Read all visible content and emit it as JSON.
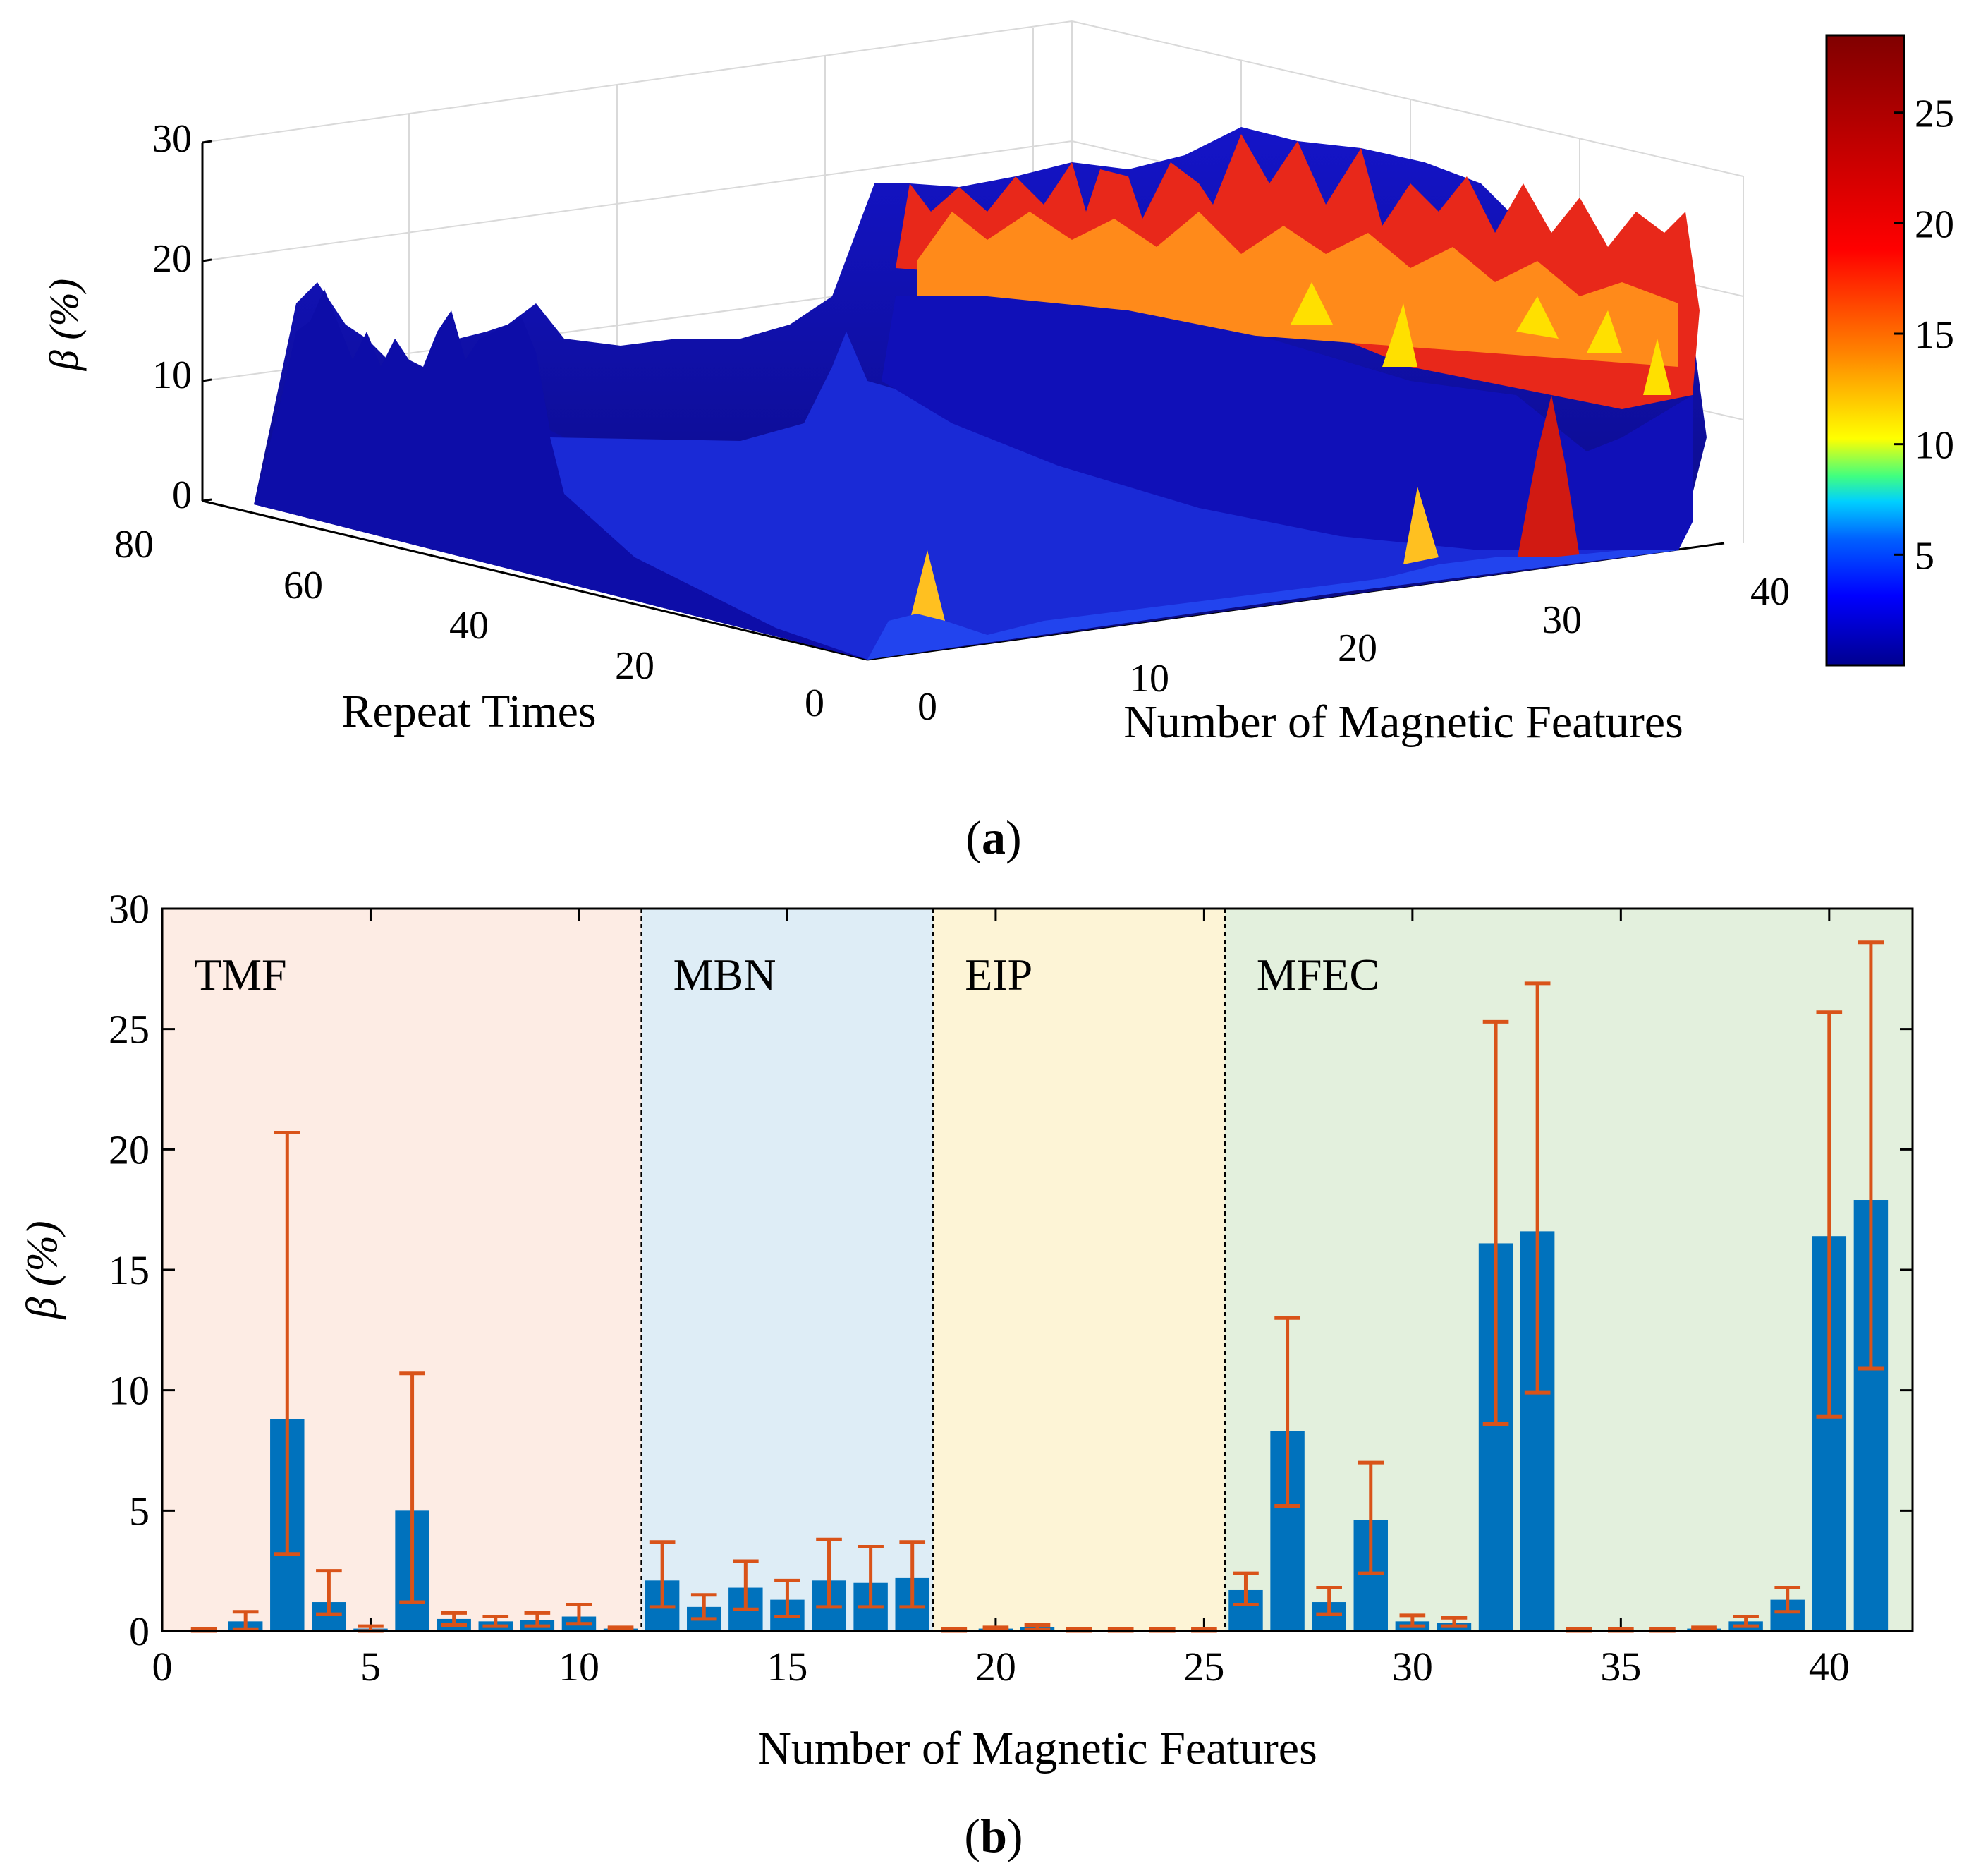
{
  "panel_a": {
    "caption_letter": "a",
    "z_label": "β (%)",
    "x_label": "Repeat Times",
    "y_label": "Number of Magnetic Features",
    "z_ticks": [
      "0",
      "10",
      "20",
      "30"
    ],
    "repeat_ticks": [
      "0",
      "20",
      "40",
      "60",
      "80"
    ],
    "feature_ticks": [
      "0",
      "10",
      "20",
      "30",
      "40"
    ],
    "colorbar_ticks": [
      "5",
      "10",
      "15",
      "20",
      "25"
    ],
    "colorbar_range": [
      0,
      28.5
    ],
    "colormap": "jet"
  },
  "panel_b": {
    "caption_letter": "b",
    "regions": [
      {
        "label": "TMF",
        "from": 0,
        "to": 11.5,
        "color": "#fdece4"
      },
      {
        "label": "MBN",
        "from": 11.5,
        "to": 18.5,
        "color": "#deedf6"
      },
      {
        "label": "EIP",
        "from": 18.5,
        "to": 25.5,
        "color": "#fdf4d6"
      },
      {
        "label": "MFEC",
        "from": 25.5,
        "to": 42,
        "color": "#e3f0dd"
      }
    ]
  },
  "chart_data": {
    "type": "bar",
    "xlabel": "Number of Magnetic Features",
    "ylabel": "β (%)",
    "xlim": [
      0,
      42
    ],
    "ylim": [
      0,
      30
    ],
    "x_ticks": [
      0,
      5,
      10,
      15,
      20,
      25,
      30,
      35,
      40
    ],
    "y_ticks": [
      0,
      5,
      10,
      15,
      20,
      25,
      30
    ],
    "bar_color": "#0072bd",
    "error_color": "#d95319",
    "x": [
      1,
      2,
      3,
      4,
      5,
      6,
      7,
      8,
      9,
      10,
      11,
      12,
      13,
      14,
      15,
      16,
      17,
      18,
      19,
      20,
      21,
      22,
      23,
      24,
      25,
      26,
      27,
      28,
      29,
      30,
      31,
      32,
      33,
      34,
      35,
      36,
      37,
      38,
      39,
      40,
      41
    ],
    "values": [
      0.05,
      0.4,
      8.8,
      1.2,
      0.1,
      5.0,
      0.5,
      0.4,
      0.45,
      0.6,
      0.1,
      2.1,
      1.0,
      1.8,
      1.3,
      2.1,
      2.0,
      2.2,
      0.05,
      0.1,
      0.15,
      0.05,
      0.05,
      0.05,
      0.05,
      1.7,
      8.3,
      1.2,
      4.6,
      0.4,
      0.35,
      16.1,
      16.6,
      0.05,
      0.05,
      0.05,
      0.1,
      0.4,
      1.3,
      16.4,
      17.9
    ],
    "error_low": [
      0.0,
      0.05,
      3.2,
      0.7,
      0.0,
      1.2,
      0.25,
      0.2,
      0.2,
      0.3,
      0.05,
      1.0,
      0.5,
      0.9,
      0.6,
      1.0,
      1.0,
      1.0,
      0.0,
      0.05,
      0.05,
      0.0,
      0.0,
      0.0,
      0.0,
      1.1,
      5.2,
      0.7,
      2.4,
      0.2,
      0.2,
      8.6,
      9.9,
      0.0,
      0.0,
      0.0,
      0.05,
      0.2,
      0.8,
      8.9,
      10.9
    ],
    "error_high": [
      0.1,
      0.8,
      20.7,
      2.5,
      0.2,
      10.7,
      0.75,
      0.6,
      0.75,
      1.1,
      0.15,
      3.7,
      1.5,
      2.9,
      2.1,
      3.8,
      3.5,
      3.7,
      0.1,
      0.15,
      0.25,
      0.1,
      0.1,
      0.1,
      0.1,
      2.4,
      13.0,
      1.8,
      7.0,
      0.65,
      0.55,
      25.3,
      26.9,
      0.1,
      0.1,
      0.1,
      0.15,
      0.6,
      1.8,
      25.7,
      28.6
    ]
  }
}
